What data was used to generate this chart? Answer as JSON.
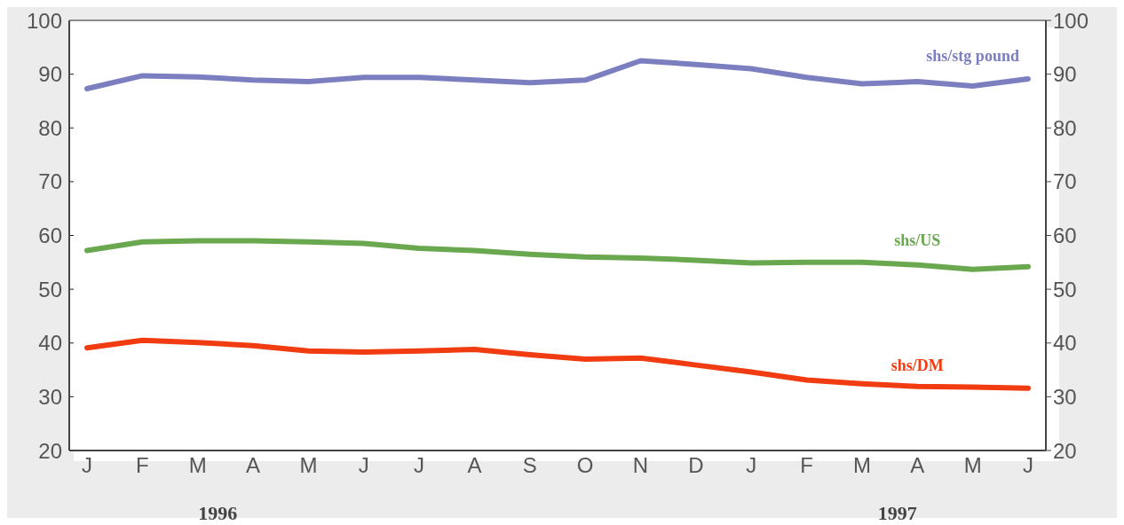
{
  "chart_data": {
    "type": "line",
    "categories": [
      "J",
      "F",
      "M",
      "A",
      "M",
      "J",
      "J",
      "A",
      "S",
      "O",
      "N",
      "D",
      "J",
      "F",
      "M",
      "A",
      "M",
      "J"
    ],
    "series": [
      {
        "name": "shs/stg pound",
        "color": "#7b7fc0",
        "values": [
          87.3,
          89.7,
          89.5,
          88.9,
          88.6,
          89.4,
          89.4,
          88.9,
          88.4,
          88.9,
          92.5,
          91.8,
          91.0,
          89.4,
          88.2,
          88.6,
          87.8,
          89.1
        ]
      },
      {
        "name": "shs/US",
        "color": "#6aa84f",
        "values": [
          57.2,
          58.8,
          59.0,
          59.0,
          58.8,
          58.5,
          57.6,
          57.2,
          56.5,
          56.0,
          55.8,
          55.4,
          54.9,
          55.0,
          55.0,
          54.5,
          53.7,
          54.2
        ]
      },
      {
        "name": "shs/DM",
        "color": "#f03c10",
        "values": [
          39.1,
          40.5,
          40.1,
          39.5,
          38.5,
          38.3,
          38.5,
          38.8,
          37.8,
          37.0,
          37.2,
          35.9,
          34.6,
          33.1,
          32.4,
          31.9,
          31.8,
          31.6
        ]
      }
    ],
    "ylim": [
      20,
      100
    ],
    "yticks": [
      20,
      30,
      40,
      50,
      60,
      70,
      80,
      90,
      100
    ],
    "y2lim": [
      20,
      100
    ],
    "y2ticks": [
      20,
      30,
      40,
      50,
      60,
      70,
      80,
      90,
      100
    ],
    "grid": "y",
    "line_style": "solid",
    "annotations": [
      "1996",
      "1997"
    ]
  }
}
